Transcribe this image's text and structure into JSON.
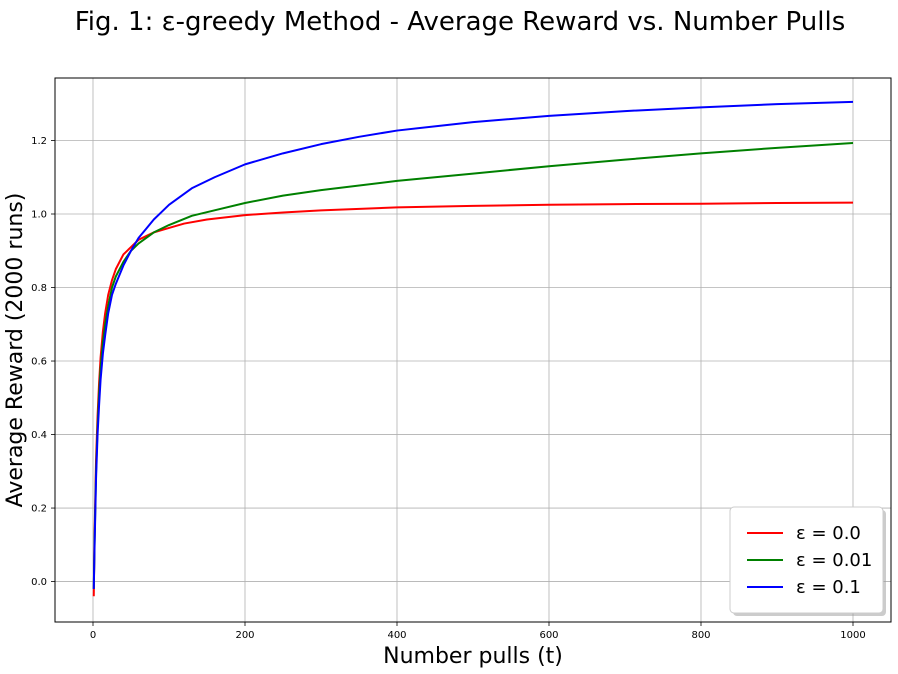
{
  "chart_data": {
    "type": "line",
    "title": "Fig. 1: ε-greedy Method - Average Reward vs. Number Pulls",
    "xlabel": "Number pulls (t)",
    "ylabel": "Average Reward (2000 runs)",
    "xlim": [
      -50,
      1050
    ],
    "ylim": [
      -0.11,
      1.37
    ],
    "xticks": [
      0,
      200,
      400,
      600,
      800,
      1000
    ],
    "yticks": [
      0.0,
      0.2,
      0.4,
      0.6,
      0.8,
      1.0,
      1.2
    ],
    "grid": true,
    "legend_position": "lower-right",
    "series": [
      {
        "name": "ε = 0.0",
        "color": "#ff0000",
        "x": [
          1,
          2,
          4,
          6,
          8,
          10,
          13,
          16,
          20,
          25,
          30,
          40,
          50,
          60,
          70,
          80,
          100,
          120,
          150,
          200,
          250,
          300,
          400,
          500,
          600,
          700,
          800,
          900,
          1000
        ],
        "y": [
          -0.04,
          0.12,
          0.33,
          0.45,
          0.54,
          0.61,
          0.68,
          0.73,
          0.78,
          0.82,
          0.85,
          0.89,
          0.91,
          0.93,
          0.94,
          0.95,
          0.962,
          0.974,
          0.985,
          0.997,
          1.004,
          1.01,
          1.018,
          1.022,
          1.025,
          1.027,
          1.028,
          1.03,
          1.031
        ]
      },
      {
        "name": "ε = 0.01",
        "color": "#008000",
        "x": [
          1,
          2,
          4,
          6,
          8,
          10,
          13,
          16,
          20,
          25,
          30,
          40,
          50,
          60,
          70,
          80,
          100,
          130,
          160,
          200,
          250,
          300,
          400,
          500,
          600,
          700,
          800,
          900,
          1000
        ],
        "y": [
          -0.02,
          0.1,
          0.3,
          0.42,
          0.51,
          0.58,
          0.65,
          0.7,
          0.75,
          0.8,
          0.83,
          0.87,
          0.9,
          0.92,
          0.935,
          0.95,
          0.97,
          0.995,
          1.01,
          1.03,
          1.05,
          1.065,
          1.09,
          1.11,
          1.13,
          1.148,
          1.165,
          1.18,
          1.193
        ]
      },
      {
        "name": "ε = 0.1",
        "color": "#0000ff",
        "x": [
          1,
          2,
          4,
          6,
          8,
          10,
          13,
          16,
          20,
          25,
          30,
          40,
          50,
          60,
          70,
          80,
          90,
          100,
          130,
          160,
          200,
          250,
          300,
          350,
          400,
          500,
          600,
          700,
          800,
          900,
          1000
        ],
        "y": [
          -0.02,
          0.09,
          0.28,
          0.4,
          0.48,
          0.55,
          0.62,
          0.67,
          0.73,
          0.78,
          0.81,
          0.86,
          0.9,
          0.935,
          0.96,
          0.985,
          1.005,
          1.025,
          1.07,
          1.1,
          1.135,
          1.165,
          1.19,
          1.21,
          1.227,
          1.25,
          1.267,
          1.28,
          1.29,
          1.299,
          1.305
        ]
      }
    ]
  }
}
